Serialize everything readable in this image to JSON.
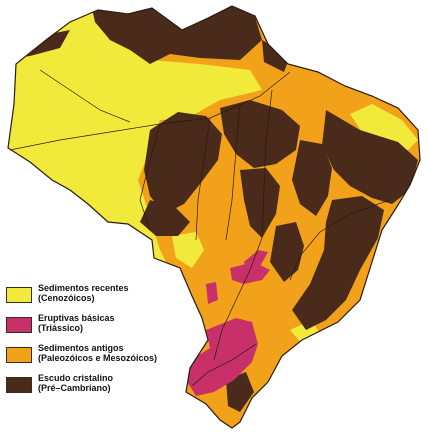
{
  "map": {
    "colors": {
      "recent_sediments": "#f2ea3a",
      "basic_eruptives": "#c8306a",
      "ancient_sediments": "#f2a21a",
      "crystalline_shield": "#4a2a1a",
      "border": "#2b1a10",
      "background": "#ffffff"
    }
  },
  "legend": {
    "items": [
      {
        "line1": "Sedimentos recentes",
        "line2": "(Cenozóicos)",
        "color": "#f2ea3a"
      },
      {
        "line1": "Eruptivas básicas",
        "line2": "(Triássico)",
        "color": "#c8306a"
      },
      {
        "line1": "Sedimentos antigos",
        "line2": "(Paleozóicos e Mesozóicos)",
        "color": "#f2a21a"
      },
      {
        "line1": "Escudo cristalino",
        "line2": "(Pré–Cambriano)",
        "color": "#4a2a1a"
      }
    ]
  }
}
